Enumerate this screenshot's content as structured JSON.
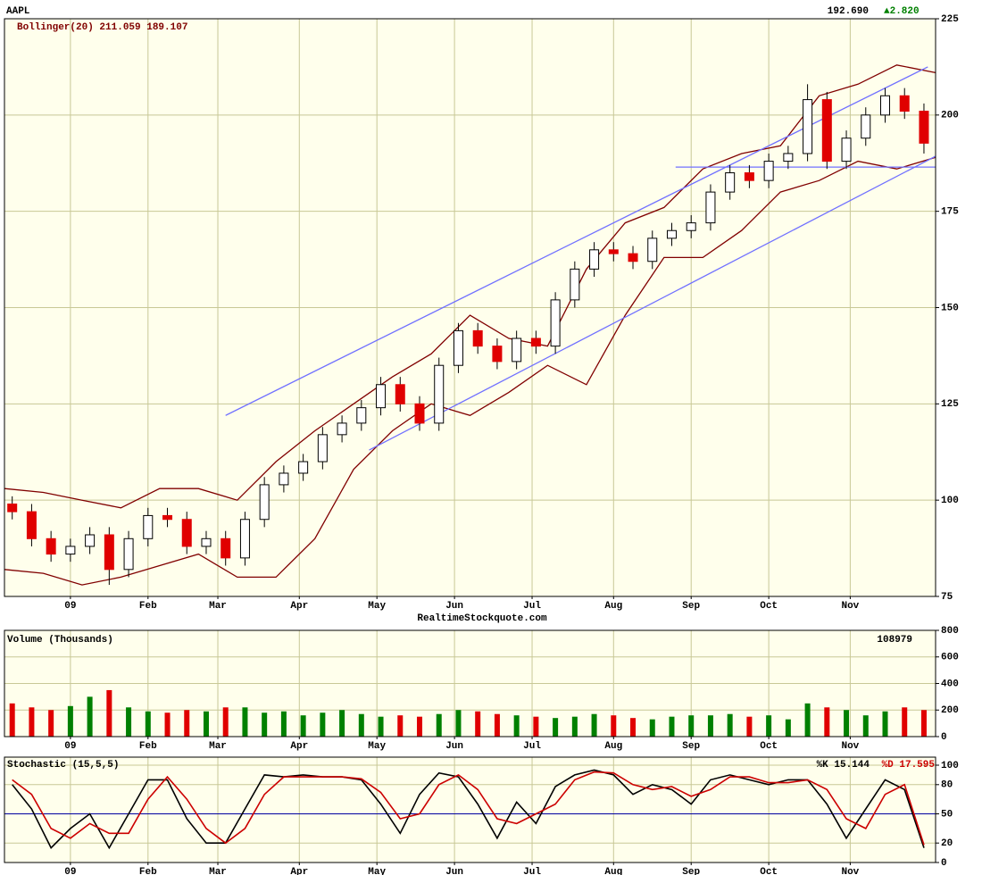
{
  "header": {
    "symbol": "AAPL",
    "last": "192.690",
    "change": "▲2.820",
    "source": "RealtimeStockquote.com"
  },
  "chart_data": [
    {
      "type": "candlestick",
      "legend": "Bollinger(20) 211.059 189.107",
      "x": [
        2,
        7,
        12,
        17,
        22,
        27,
        32,
        37,
        42,
        47,
        52,
        57,
        62,
        67,
        72,
        77,
        82,
        87,
        92,
        97,
        102,
        107,
        112,
        117,
        122,
        127,
        132,
        137,
        142,
        147,
        152,
        157,
        162,
        167,
        172,
        177,
        182,
        187,
        192,
        197,
        202,
        207,
        212,
        217,
        222,
        227,
        232,
        237
      ],
      "open": [
        99,
        97,
        90,
        86,
        88,
        91,
        82,
        90,
        96,
        95,
        88,
        90,
        85,
        95,
        104,
        107,
        110,
        117,
        120,
        124,
        130,
        125,
        120,
        135,
        144,
        140,
        136,
        142,
        140,
        152,
        160,
        165,
        164,
        162,
        168,
        170,
        172,
        180,
        185,
        183,
        188,
        190,
        204,
        188,
        194,
        200,
        205,
        201
      ],
      "high": [
        101,
        99,
        92,
        90,
        93,
        93,
        92,
        98,
        98,
        97,
        92,
        92,
        97,
        106,
        109,
        112,
        119,
        122,
        126,
        132,
        132,
        127,
        137,
        146,
        146,
        142,
        144,
        144,
        154,
        162,
        167,
        167,
        166,
        170,
        172,
        174,
        182,
        187,
        187,
        190,
        192,
        208,
        206,
        196,
        202,
        207,
        207,
        203
      ],
      "low": [
        95,
        88,
        84,
        84,
        86,
        78,
        80,
        88,
        93,
        86,
        86,
        83,
        83,
        93,
        102,
        105,
        108,
        115,
        118,
        122,
        123,
        118,
        118,
        133,
        138,
        134,
        134,
        138,
        138,
        150,
        158,
        162,
        160,
        160,
        166,
        168,
        170,
        178,
        181,
        181,
        186,
        188,
        186,
        186,
        192,
        198,
        199,
        190
      ],
      "close": [
        97,
        90,
        86,
        88,
        91,
        82,
        90,
        96,
        95,
        88,
        90,
        85,
        95,
        104,
        107,
        110,
        117,
        120,
        124,
        130,
        125,
        120,
        135,
        144,
        140,
        136,
        142,
        140,
        152,
        160,
        165,
        164,
        162,
        168,
        170,
        172,
        180,
        185,
        183,
        188,
        190,
        204,
        188,
        194,
        200,
        205,
        201,
        192.69
      ],
      "up_color": "#ffffff",
      "down_color": "#e00000",
      "bands": {
        "color": "#800000",
        "x": [
          0,
          10,
          20,
          30,
          40,
          50,
          60,
          70,
          80,
          90,
          100,
          110,
          120,
          130,
          140,
          150,
          160,
          170,
          180,
          190,
          200,
          210,
          220,
          230,
          240
        ],
        "upper": [
          103,
          102,
          100,
          98,
          103,
          103,
          100,
          110,
          118,
          125,
          132,
          138,
          148,
          142,
          140,
          160,
          172,
          176,
          186,
          190,
          192,
          205,
          208,
          213,
          211
        ],
        "lower": [
          82,
          81,
          78,
          80,
          83,
          86,
          80,
          80,
          90,
          108,
          118,
          125,
          122,
          128,
          135,
          130,
          148,
          163,
          163,
          170,
          180,
          183,
          188,
          186,
          189
        ]
      },
      "trendlines": [
        {
          "color": "#7070ff",
          "x": [
            57,
            238
          ],
          "y": [
            122,
            212.5
          ]
        },
        {
          "color": "#7070ff",
          "x": [
            94,
            240
          ],
          "y": [
            113,
            189.3
          ]
        },
        {
          "color": "#7070ff",
          "x": [
            173,
            240
          ],
          "y": [
            186.5,
            186.5
          ]
        }
      ],
      "xlim": [
        0,
        240
      ],
      "xticks": [
        {
          "value": 17,
          "label": "09"
        },
        {
          "value": 37,
          "label": "Feb"
        },
        {
          "value": 55,
          "label": "Mar"
        },
        {
          "value": 76,
          "label": "Apr"
        },
        {
          "value": 96,
          "label": "May"
        },
        {
          "value": 116,
          "label": "Jun"
        },
        {
          "value": 136,
          "label": "Jul"
        },
        {
          "value": 157,
          "label": "Aug"
        },
        {
          "value": 177,
          "label": "Sep"
        },
        {
          "value": 197,
          "label": "Oct"
        },
        {
          "value": 218,
          "label": "Nov"
        }
      ],
      "ylim": [
        75,
        225
      ],
      "yticks": [
        75,
        100,
        125,
        150,
        175,
        200,
        225
      ],
      "grid": true
    },
    {
      "type": "bar",
      "title": "Volume (Thousands)",
      "annotation": "108979",
      "x": [
        2,
        7,
        12,
        17,
        22,
        27,
        32,
        37,
        42,
        47,
        52,
        57,
        62,
        67,
        72,
        77,
        82,
        87,
        92,
        97,
        102,
        107,
        112,
        117,
        122,
        127,
        132,
        137,
        142,
        147,
        152,
        157,
        162,
        167,
        172,
        177,
        182,
        187,
        192,
        197,
        202,
        207,
        212,
        217,
        222,
        227,
        232,
        237
      ],
      "values": [
        250,
        220,
        200,
        230,
        300,
        350,
        220,
        190,
        180,
        200,
        190,
        220,
        220,
        180,
        190,
        160,
        180,
        200,
        170,
        150,
        160,
        150,
        170,
        200,
        190,
        170,
        160,
        150,
        140,
        150,
        170,
        160,
        140,
        130,
        150,
        160,
        160,
        170,
        150,
        160,
        130,
        250,
        220,
        200,
        160,
        190,
        220,
        200
      ],
      "up_color": "#008000",
      "down_color": "#e00000",
      "xlim": [
        0,
        240
      ],
      "xticks": [
        {
          "value": 17,
          "label": "09"
        },
        {
          "value": 37,
          "label": "Feb"
        },
        {
          "value": 55,
          "label": "Mar"
        },
        {
          "value": 76,
          "label": "Apr"
        },
        {
          "value": 96,
          "label": "May"
        },
        {
          "value": 116,
          "label": "Jun"
        },
        {
          "value": 136,
          "label": "Jul"
        },
        {
          "value": 157,
          "label": "Aug"
        },
        {
          "value": 177,
          "label": "Sep"
        },
        {
          "value": 197,
          "label": "Oct"
        },
        {
          "value": 218,
          "label": "Nov"
        }
      ],
      "ylim": [
        0,
        800
      ],
      "yticks": [
        0,
        200,
        400,
        600,
        800
      ],
      "grid": true
    },
    {
      "type": "line",
      "title": "Stochastic (15,5,5)",
      "x": [
        2,
        7,
        12,
        17,
        22,
        27,
        32,
        37,
        42,
        47,
        52,
        57,
        62,
        67,
        72,
        77,
        82,
        87,
        92,
        97,
        102,
        107,
        112,
        117,
        122,
        127,
        132,
        137,
        142,
        147,
        152,
        157,
        162,
        167,
        172,
        177,
        182,
        187,
        192,
        197,
        202,
        207,
        212,
        217,
        222,
        227,
        232,
        237
      ],
      "series": [
        {
          "name": "%K 15.144",
          "color": "#000000",
          "values": [
            80,
            55,
            15,
            35,
            50,
            15,
            50,
            85,
            85,
            45,
            20,
            20,
            55,
            90,
            88,
            90,
            88,
            88,
            85,
            60,
            30,
            70,
            92,
            88,
            60,
            25,
            62,
            40,
            78,
            90,
            95,
            90,
            70,
            80,
            75,
            60,
            85,
            90,
            85,
            80,
            85,
            85,
            60,
            25,
            55,
            85,
            75,
            15
          ]
        },
        {
          "name": "%D 17.595",
          "color": "#cc0000",
          "values": [
            85,
            70,
            35,
            25,
            40,
            30,
            30,
            65,
            88,
            65,
            35,
            20,
            35,
            70,
            88,
            88,
            88,
            88,
            86,
            72,
            45,
            50,
            80,
            90,
            75,
            45,
            40,
            50,
            60,
            85,
            93,
            92,
            80,
            75,
            78,
            68,
            75,
            88,
            88,
            82,
            82,
            85,
            75,
            45,
            35,
            70,
            80,
            18
          ]
        }
      ],
      "reference_line": 50,
      "reference_color": "#0000a0",
      "xlim": [
        0,
        240
      ],
      "xticks": [
        {
          "value": 17,
          "label": "09"
        },
        {
          "value": 37,
          "label": "Feb"
        },
        {
          "value": 55,
          "label": "Mar"
        },
        {
          "value": 76,
          "label": "Apr"
        },
        {
          "value": 96,
          "label": "May"
        },
        {
          "value": 116,
          "label": "Jun"
        },
        {
          "value": 136,
          "label": "Jul"
        },
        {
          "value": 157,
          "label": "Aug"
        },
        {
          "value": 177,
          "label": "Sep"
        },
        {
          "value": 197,
          "label": "Oct"
        },
        {
          "value": 218,
          "label": "Nov"
        }
      ],
      "ylim": [
        0,
        100
      ],
      "yticks": [
        0,
        20,
        50,
        80,
        100
      ],
      "grid": true
    }
  ]
}
